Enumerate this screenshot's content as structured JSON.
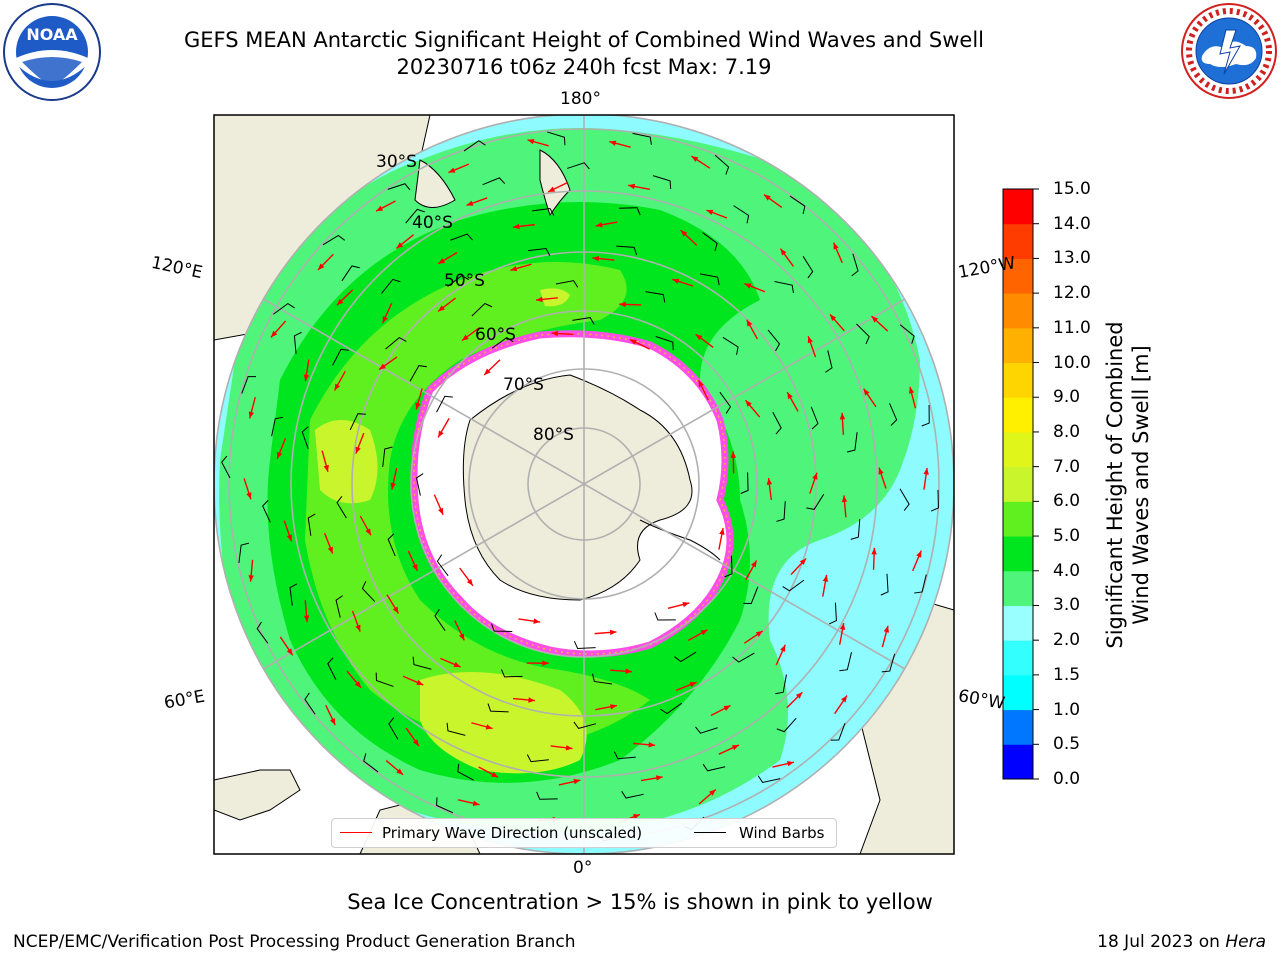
{
  "title": {
    "line1": "GEFS MEAN Antarctic Significant Height of Combined Wind Waves and Swell",
    "line2": "20230716 t06z 240h fcst   Max: 7.19"
  },
  "logos": {
    "left": {
      "text": "NOAA",
      "ring": "NATIONAL OCEANIC AND ATMOSPHERIC ADMINISTRATION  U.S. DEPARTMENT OF COMMERCE"
    },
    "right": {
      "ring": "NATIONAL WEATHER SERVICE"
    }
  },
  "map": {
    "longitude_labels": {
      "top": "180°",
      "bottom": "0°",
      "left_upper": "120°E",
      "left_lower": "60°E",
      "right_upper": "120°W",
      "right_lower": "60°W"
    },
    "latitude_labels": [
      "30°S",
      "40°S",
      "50°S",
      "60°S",
      "70°S",
      "80°S"
    ],
    "colors": {
      "land": "#eeecda",
      "ocean_low": "#8dfbff",
      "band_3": "#4ef57a",
      "band_4": "#00e61e",
      "band_5": "#60f020",
      "band_6": "#c9f52d",
      "ice": "#ffffff",
      "sea_ice_edge": "#ff4ee6"
    }
  },
  "legend": {
    "wave_direction": "Primary Wave Direction (unscaled)",
    "wind_barbs": "Wind Barbs",
    "wave_color": "#ff0000",
    "barb_color": "#000000"
  },
  "colorbar": {
    "label_line1": "Significant Height of Combined",
    "label_line2": "Wind Waves and Swell [m]",
    "ticks": [
      "0.0",
      "0.5",
      "1.0",
      "1.5",
      "2.0",
      "3.0",
      "4.0",
      "5.0",
      "6.0",
      "7.0",
      "8.0",
      "9.0",
      "10.0",
      "11.0",
      "12.0",
      "13.0",
      "14.0",
      "15.0"
    ],
    "colors": [
      "#0000ff",
      "#0077ff",
      "#00ffff",
      "#33ffff",
      "#99ffff",
      "#4ef57a",
      "#00e61e",
      "#60f020",
      "#c9f52d",
      "#e0f51a",
      "#fff000",
      "#ffd500",
      "#ffb000",
      "#ff8c00",
      "#ff6400",
      "#ff3c00",
      "#ff0000"
    ]
  },
  "bottom_note": "Sea Ice Concentration > 15% is shown in pink to yellow",
  "footer": {
    "left": "NCEP/EMC/Verification Post Processing Product Generation Branch",
    "right_prefix": "18 Jul 2023 on ",
    "right_host": "Hera"
  }
}
